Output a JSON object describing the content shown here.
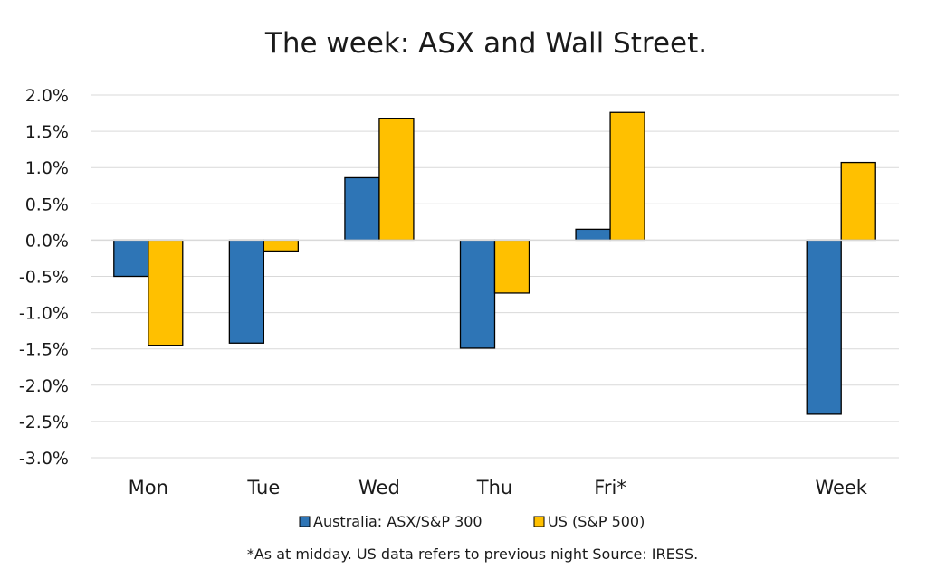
{
  "chart_data": {
    "type": "bar",
    "title": "The week:  ASX and Wall Street.",
    "categories": [
      "Mon",
      "Tue",
      "Wed",
      "Thu",
      "Fri*",
      "",
      "Week"
    ],
    "series": [
      {
        "name": "Australia: ASX/S&P 300",
        "color": "#2e75b6",
        "values": [
          -0.5,
          -1.42,
          0.86,
          -1.49,
          0.15,
          null,
          -2.4
        ]
      },
      {
        "name": "US (S&P 500)",
        "color": "#ffc000",
        "values": [
          -1.45,
          -0.15,
          1.68,
          -0.73,
          1.76,
          null,
          1.07
        ]
      }
    ],
    "ylim": [
      -3.0,
      2.0
    ],
    "yticks": [
      "2.0%",
      "1.5%",
      "1.0%",
      "0.5%",
      "0.0%",
      "-0.5%",
      "-1.0%",
      "-1.5%",
      "-2.0%",
      "-2.5%",
      "-3.0%"
    ],
    "ytick_values": [
      2.0,
      1.5,
      1.0,
      0.5,
      0.0,
      -0.5,
      -1.0,
      -1.5,
      -2.0,
      -2.5,
      -3.0
    ],
    "grid": true,
    "legend_position": "bottom",
    "footnote": "*As at midday. US data refers to previous night  Source:  IRESS."
  }
}
